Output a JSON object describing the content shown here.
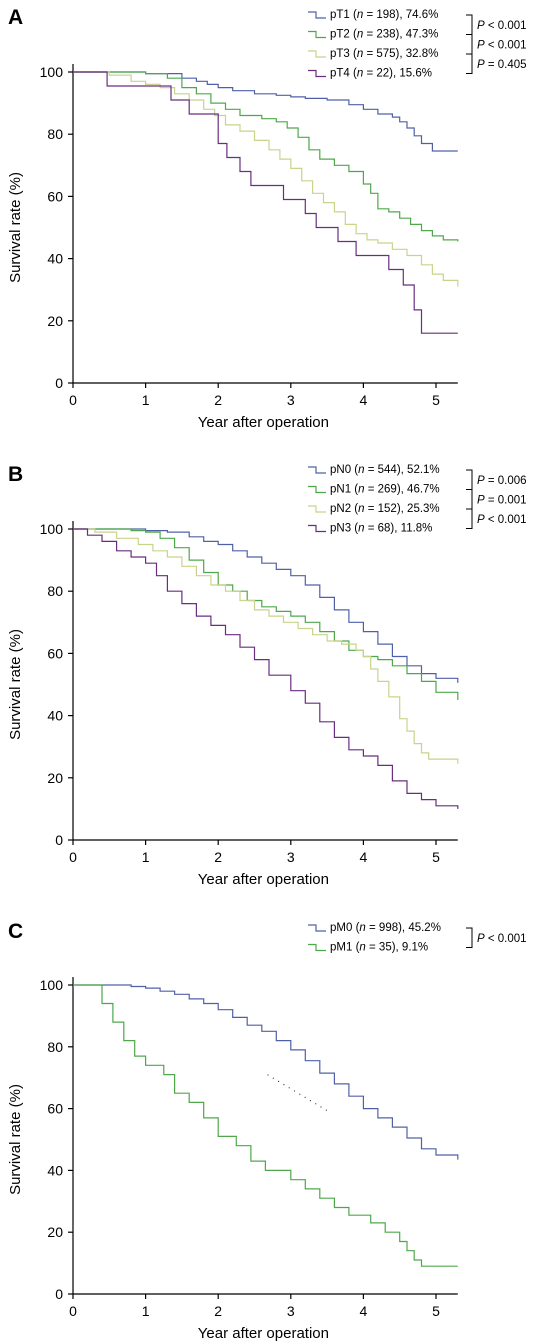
{
  "chart_data": [
    {
      "type": "line",
      "panel": "A",
      "xlabel": "Year after operation",
      "ylabel": "Survival rate (%)",
      "xlim": [
        0,
        5.3
      ],
      "ylim": [
        0,
        100
      ],
      "xticks": [
        "0",
        "1",
        "2",
        "3",
        "4",
        "5"
      ],
      "yticks": [
        "0",
        "20",
        "40",
        "60",
        "80",
        "100"
      ],
      "step": true,
      "series": [
        {
          "label": "pT1",
          "n": "198",
          "final": "74.6%",
          "color": "#5060a8",
          "points": [
            [
              0,
              100
            ],
            [
              1,
              99.5
            ],
            [
              1.5,
              98
            ],
            [
              1.7,
              97
            ],
            [
              1.85,
              96
            ],
            [
              2,
              95
            ],
            [
              2.2,
              94
            ],
            [
              2.5,
              93
            ],
            [
              2.8,
              92.5
            ],
            [
              3,
              92
            ],
            [
              3.2,
              91.5
            ],
            [
              3.5,
              91
            ],
            [
              3.8,
              89.5
            ],
            [
              4,
              88
            ],
            [
              4.2,
              86.5
            ],
            [
              4.4,
              85.5
            ],
            [
              4.5,
              84
            ],
            [
              4.6,
              82
            ],
            [
              4.7,
              79.5
            ],
            [
              4.8,
              77
            ],
            [
              4.95,
              74.6
            ],
            [
              5.3,
              74.6
            ]
          ]
        },
        {
          "label": "pT2",
          "n": "238",
          "final": "47.3%",
          "color": "#4ea84a",
          "points": [
            [
              0,
              100
            ],
            [
              1,
              99.5
            ],
            [
              1.3,
              98
            ],
            [
              1.5,
              95
            ],
            [
              1.7,
              93
            ],
            [
              1.9,
              90
            ],
            [
              2.1,
              88
            ],
            [
              2.3,
              86
            ],
            [
              2.6,
              85
            ],
            [
              2.8,
              84
            ],
            [
              2.95,
              82
            ],
            [
              3.1,
              79
            ],
            [
              3.25,
              75
            ],
            [
              3.4,
              72
            ],
            [
              3.6,
              70
            ],
            [
              3.8,
              68
            ],
            [
              4,
              64
            ],
            [
              4.1,
              61
            ],
            [
              4.2,
              56
            ],
            [
              4.35,
              55
            ],
            [
              4.5,
              53
            ],
            [
              4.65,
              51
            ],
            [
              4.8,
              49
            ],
            [
              4.95,
              47.3
            ],
            [
              5.1,
              46
            ],
            [
              5.3,
              45.5
            ]
          ]
        },
        {
          "label": "pT3",
          "n": "575",
          "final": "32.8%",
          "color": "#c8d48c",
          "points": [
            [
              0,
              100
            ],
            [
              0.5,
              99
            ],
            [
              0.8,
              97
            ],
            [
              1,
              96
            ],
            [
              1.2,
              95
            ],
            [
              1.4,
              93
            ],
            [
              1.6,
              91
            ],
            [
              1.8,
              88
            ],
            [
              1.95,
              86
            ],
            [
              2.1,
              83
            ],
            [
              2.3,
              81
            ],
            [
              2.5,
              78
            ],
            [
              2.7,
              75
            ],
            [
              2.85,
              72
            ],
            [
              3,
              69
            ],
            [
              3.15,
              65
            ],
            [
              3.3,
              61
            ],
            [
              3.45,
              58
            ],
            [
              3.6,
              55
            ],
            [
              3.75,
              51
            ],
            [
              3.9,
              48
            ],
            [
              4.05,
              46
            ],
            [
              4.2,
              45
            ],
            [
              4.4,
              43
            ],
            [
              4.6,
              41
            ],
            [
              4.8,
              38
            ],
            [
              4.95,
              35
            ],
            [
              5.1,
              33
            ],
            [
              5.3,
              31
            ]
          ]
        },
        {
          "label": "pT4",
          "n": "22",
          "final": "15.6%",
          "color": "#6a2d80",
          "points": [
            [
              0,
              100
            ],
            [
              0.47,
              95.5
            ],
            [
              1.35,
              91
            ],
            [
              1.6,
              86.5
            ],
            [
              2,
              77
            ],
            [
              2.12,
              72.5
            ],
            [
              2.3,
              68
            ],
            [
              2.45,
              63.5
            ],
            [
              2.9,
              59
            ],
            [
              3.2,
              54.5
            ],
            [
              3.35,
              50
            ],
            [
              3.65,
              45.5
            ],
            [
              3.9,
              41
            ],
            [
              4.35,
              36.5
            ],
            [
              4.55,
              31.5
            ],
            [
              4.7,
              23.5
            ],
            [
              4.8,
              16
            ],
            [
              5.3,
              16
            ]
          ]
        }
      ],
      "pvalues": [
        "P < 0.001",
        "P < 0.001",
        "P = 0.405"
      ]
    },
    {
      "type": "line",
      "panel": "B",
      "xlabel": "Year after operation",
      "ylabel": "Survival rate (%)",
      "xlim": [
        0,
        5.3
      ],
      "ylim": [
        0,
        100
      ],
      "xticks": [
        "0",
        "1",
        "2",
        "3",
        "4",
        "5"
      ],
      "yticks": [
        "0",
        "20",
        "40",
        "60",
        "80",
        "100"
      ],
      "step": true,
      "series": [
        {
          "label": "pN0",
          "n": "544",
          "final": "52.1%",
          "color": "#5060a8",
          "points": [
            [
              0,
              100
            ],
            [
              0.8,
              100
            ],
            [
              1,
              99.5
            ],
            [
              1.3,
              99
            ],
            [
              1.6,
              97.5
            ],
            [
              1.8,
              96
            ],
            [
              2,
              95
            ],
            [
              2.2,
              93
            ],
            [
              2.4,
              91
            ],
            [
              2.6,
              89
            ],
            [
              2.8,
              87
            ],
            [
              3,
              85
            ],
            [
              3.2,
              82
            ],
            [
              3.4,
              78
            ],
            [
              3.6,
              74
            ],
            [
              3.8,
              70
            ],
            [
              4,
              67
            ],
            [
              4.2,
              63
            ],
            [
              4.4,
              59
            ],
            [
              4.6,
              56
            ],
            [
              4.8,
              53.5
            ],
            [
              5,
              52
            ],
            [
              5.3,
              50.5
            ]
          ]
        },
        {
          "label": "pN1",
          "n": "269",
          "final": "46.7%",
          "color": "#4ea84a",
          "points": [
            [
              0,
              100
            ],
            [
              0.5,
              100
            ],
            [
              0.8,
              99.5
            ],
            [
              1,
              99
            ],
            [
              1.2,
              97
            ],
            [
              1.4,
              94
            ],
            [
              1.6,
              90
            ],
            [
              1.8,
              86
            ],
            [
              2,
              82
            ],
            [
              2.2,
              80
            ],
            [
              2.4,
              77
            ],
            [
              2.6,
              75
            ],
            [
              2.8,
              73.5
            ],
            [
              3,
              72
            ],
            [
              3.2,
              70
            ],
            [
              3.4,
              67
            ],
            [
              3.6,
              64
            ],
            [
              3.8,
              61
            ],
            [
              4,
              59
            ],
            [
              4.2,
              58
            ],
            [
              4.4,
              56
            ],
            [
              4.6,
              53.5
            ],
            [
              4.8,
              51
            ],
            [
              5,
              47.5
            ],
            [
              5.3,
              45
            ]
          ]
        },
        {
          "label": "pN2",
          "n": "152",
          "final": "25.3%",
          "color": "#c8d48c",
          "points": [
            [
              0,
              100
            ],
            [
              0.3,
              99
            ],
            [
              0.6,
              97
            ],
            [
              0.9,
              95
            ],
            [
              1.1,
              93
            ],
            [
              1.3,
              91
            ],
            [
              1.5,
              88
            ],
            [
              1.7,
              85
            ],
            [
              1.9,
              82
            ],
            [
              2.1,
              80
            ],
            [
              2.3,
              77
            ],
            [
              2.5,
              74
            ],
            [
              2.7,
              72
            ],
            [
              2.9,
              70
            ],
            [
              3.1,
              68
            ],
            [
              3.3,
              66
            ],
            [
              3.5,
              64
            ],
            [
              3.7,
              63
            ],
            [
              3.9,
              61
            ],
            [
              4,
              59
            ],
            [
              4.1,
              55
            ],
            [
              4.2,
              51
            ],
            [
              4.35,
              46
            ],
            [
              4.5,
              39
            ],
            [
              4.6,
              35
            ],
            [
              4.7,
              31
            ],
            [
              4.8,
              28
            ],
            [
              4.9,
              26
            ],
            [
              5.3,
              24.5
            ]
          ]
        },
        {
          "label": "pN3",
          "n": "68",
          "final": "11.8%",
          "color": "#6a2d80",
          "points": [
            [
              0,
              100
            ],
            [
              0.2,
              98
            ],
            [
              0.4,
              96
            ],
            [
              0.6,
              93
            ],
            [
              0.8,
              91
            ],
            [
              1,
              89
            ],
            [
              1.15,
              85
            ],
            [
              1.3,
              80
            ],
            [
              1.5,
              76
            ],
            [
              1.7,
              72
            ],
            [
              1.9,
              69
            ],
            [
              2.1,
              66
            ],
            [
              2.3,
              62
            ],
            [
              2.5,
              58
            ],
            [
              2.7,
              53
            ],
            [
              2.9,
              53
            ],
            [
              3,
              48
            ],
            [
              3.2,
              44
            ],
            [
              3.4,
              38
            ],
            [
              3.6,
              33
            ],
            [
              3.8,
              29
            ],
            [
              4,
              27
            ],
            [
              4.2,
              24
            ],
            [
              4.4,
              19
            ],
            [
              4.6,
              15
            ],
            [
              4.8,
              13
            ],
            [
              5,
              11
            ],
            [
              5.3,
              10
            ]
          ]
        }
      ],
      "pvalues": [
        "P = 0.006",
        "P = 0.001",
        "P < 0.001"
      ]
    },
    {
      "type": "line",
      "panel": "C",
      "xlabel": "Year after operation",
      "ylabel": "Survival rate (%)",
      "xlim": [
        0,
        5.3
      ],
      "ylim": [
        0,
        100
      ],
      "xticks": [
        "0",
        "1",
        "2",
        "3",
        "4",
        "5"
      ],
      "yticks": [
        "0",
        "20",
        "40",
        "60",
        "80",
        "100"
      ],
      "step": true,
      "series": [
        {
          "label": "pM0",
          "n": "998",
          "final": "45.2%",
          "color": "#5060a8",
          "points": [
            [
              0,
              100
            ],
            [
              0.5,
              100
            ],
            [
              0.8,
              99.5
            ],
            [
              1,
              99
            ],
            [
              1.2,
              98
            ],
            [
              1.4,
              97
            ],
            [
              1.6,
              95.5
            ],
            [
              1.8,
              94
            ],
            [
              2,
              92
            ],
            [
              2.2,
              89.5
            ],
            [
              2.4,
              87
            ],
            [
              2.6,
              85
            ],
            [
              2.8,
              82
            ],
            [
              3,
              79
            ],
            [
              3.2,
              75.5
            ],
            [
              3.4,
              71.5
            ],
            [
              3.6,
              68
            ],
            [
              3.8,
              64
            ],
            [
              4,
              60
            ],
            [
              4.2,
              57
            ],
            [
              4.4,
              54
            ],
            [
              4.6,
              50.5
            ],
            [
              4.8,
              47
            ],
            [
              5,
              45
            ],
            [
              5.3,
              43.5
            ]
          ]
        },
        {
          "label": "pM1",
          "n": "35",
          "final": "9.1%",
          "color": "#4ea84a",
          "points": [
            [
              0,
              100
            ],
            [
              0.4,
              94
            ],
            [
              0.55,
              88
            ],
            [
              0.7,
              82
            ],
            [
              0.85,
              77
            ],
            [
              1,
              74
            ],
            [
              1.25,
              71
            ],
            [
              1.4,
              65
            ],
            [
              1.6,
              62
            ],
            [
              1.8,
              57
            ],
            [
              2,
              51
            ],
            [
              2.25,
              48
            ],
            [
              2.45,
              43
            ],
            [
              2.65,
              40
            ],
            [
              3,
              37
            ],
            [
              3.2,
              34
            ],
            [
              3.4,
              31
            ],
            [
              3.6,
              28
            ],
            [
              3.8,
              25.5
            ],
            [
              4.1,
              23
            ],
            [
              4.3,
              20
            ],
            [
              4.5,
              17
            ],
            [
              4.6,
              14
            ],
            [
              4.7,
              11
            ],
            [
              4.8,
              9
            ],
            [
              5.3,
              9
            ]
          ]
        }
      ],
      "pvalues": [
        "P < 0.001"
      ]
    }
  ]
}
